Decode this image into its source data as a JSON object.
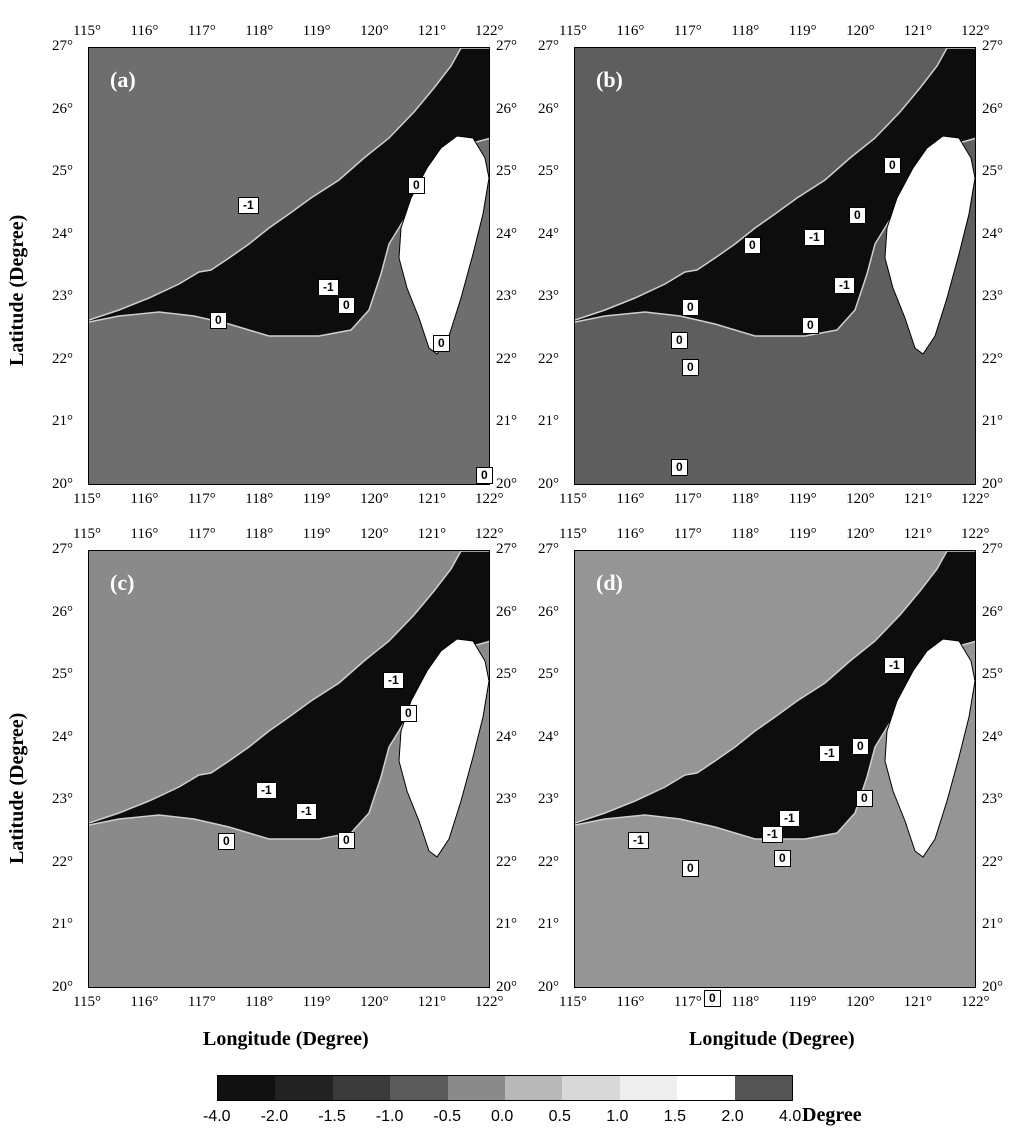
{
  "panels": [
    {
      "label": "(a)",
      "contours": [
        "-1",
        "-1",
        "0",
        "0",
        "0",
        "0",
        "0"
      ]
    },
    {
      "label": "(b)",
      "contours": [
        "0",
        "0",
        "-1",
        "0",
        "-1",
        "0",
        "0",
        "0",
        "0",
        "0"
      ]
    },
    {
      "label": "(c)",
      "contours": [
        "-1",
        "0",
        "-1",
        "-1",
        "0",
        "0"
      ]
    },
    {
      "label": "(d)",
      "contours": [
        "-1",
        "0",
        "-1",
        "-1",
        "0",
        "-1",
        "0",
        "0",
        "0",
        "-1"
      ]
    }
  ],
  "lon_ticks": [
    "115°",
    "116°",
    "117°",
    "118°",
    "119°",
    "120°",
    "121°",
    "122°"
  ],
  "lat_ticks": [
    "27°",
    "26°",
    "25°",
    "24°",
    "23°",
    "22°",
    "21°",
    "20°"
  ],
  "xlabel": "Longitude (Degree)",
  "ylabel": "Latitude (Degree)",
  "colorbar": {
    "labels": [
      "-4.0",
      "-2.0",
      "-1.5",
      "-1.0",
      "-0.5",
      "0.0",
      "0.5",
      "1.0",
      "1.5",
      "2.0",
      "4.0"
    ],
    "unit": "Degree",
    "colors": [
      "#111",
      "#222",
      "#3a3a3a",
      "#5a5a5a",
      "#8a8a8a",
      "#b8b8b8",
      "#d8d8d8",
      "#eeeeee",
      "#ffffff",
      "#555555"
    ]
  }
}
